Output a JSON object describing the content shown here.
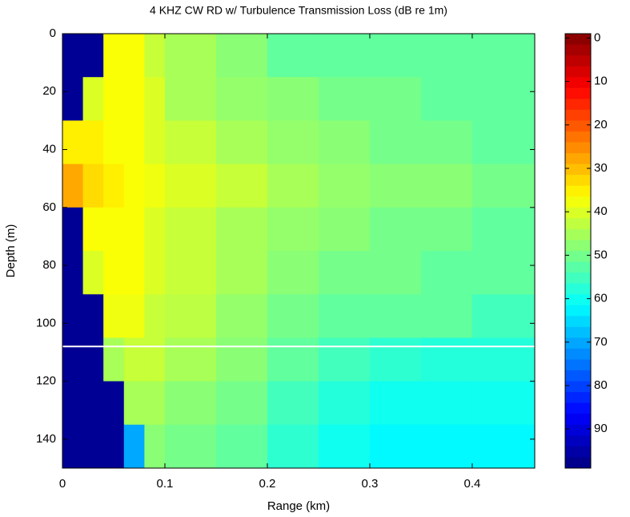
{
  "chart_data": {
    "type": "heatmap",
    "title": "4 KHZ CW RD w/ Turbulence Transmission Loss (dB re 1m)",
    "x_label": "Range (km)",
    "y_label": "Depth (m)",
    "colormap": "jet",
    "reverse_colormap": true,
    "xbins": [
      0,
      0.02,
      0.04,
      0.06,
      0.08,
      0.1,
      0.15,
      0.2,
      0.25,
      0.3,
      0.35,
      0.4,
      0.461
    ],
    "ybins": [
      0,
      15,
      30,
      45,
      60,
      75,
      90,
      105,
      120,
      135,
      150
    ],
    "z": [
      [
        97,
        97,
        37,
        37,
        42,
        45,
        48,
        52,
        52,
        52,
        52,
        52
      ],
      [
        97,
        40,
        37,
        37,
        40,
        45,
        47,
        48,
        50,
        50,
        52,
        52
      ],
      [
        35,
        35,
        37,
        37,
        40,
        42,
        45,
        47,
        48,
        50,
        50,
        52
      ],
      [
        28,
        33,
        35,
        37,
        38,
        40,
        42,
        45,
        47,
        48,
        48,
        50
      ],
      [
        97,
        37,
        37,
        37,
        40,
        42,
        45,
        47,
        48,
        50,
        50,
        52
      ],
      [
        97,
        40,
        37,
        37,
        40,
        42,
        45,
        48,
        50,
        50,
        52,
        52
      ],
      [
        97,
        97,
        38,
        38,
        42,
        43,
        47,
        50,
        52,
        52,
        52,
        55
      ],
      [
        97,
        97,
        45,
        42,
        42,
        45,
        48,
        52,
        55,
        57,
        58,
        58
      ],
      [
        97,
        97,
        97,
        45,
        45,
        48,
        50,
        55,
        58,
        60,
        60,
        60
      ],
      [
        97,
        97,
        97,
        70,
        48,
        50,
        52,
        57,
        60,
        62,
        62,
        62
      ]
    ],
    "hline": 108,
    "xlim": [
      0,
      0.461
    ],
    "xticks": [
      0,
      0.1,
      0.2,
      0.3,
      0.4
    ],
    "ylim": [
      0,
      150
    ],
    "yticks": [
      0,
      20,
      40,
      60,
      80,
      100,
      120,
      140
    ],
    "clim": [
      -1,
      99
    ],
    "cticks": [
      0,
      10,
      20,
      30,
      40,
      50,
      60,
      70,
      80,
      90
    ]
  }
}
